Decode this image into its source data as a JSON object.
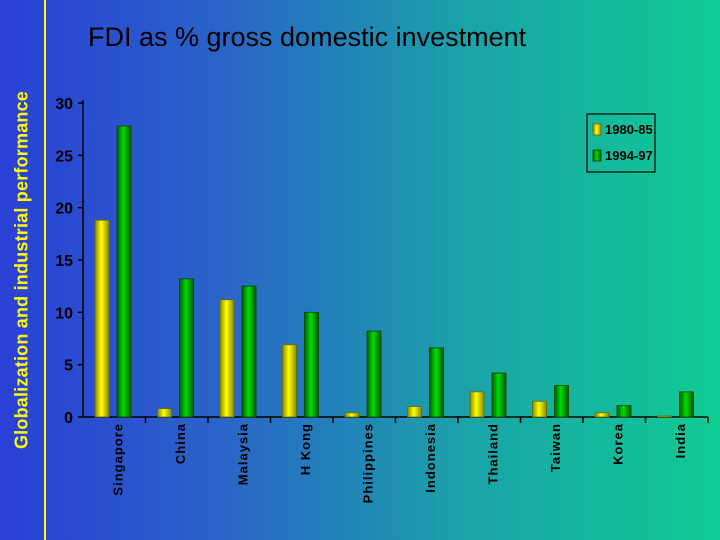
{
  "side_title": "Globalization and industrial performance",
  "slide_title": "FDI as % gross domestic investment",
  "colors": {
    "series_1980": "#ffff00",
    "series_1994": "#00cc00",
    "side_title_text": "#ffff00",
    "axis": "#000000"
  },
  "chart_data": {
    "type": "bar",
    "title": "",
    "xlabel": "",
    "ylabel": "",
    "ylim": [
      0,
      30
    ],
    "yticks": [
      0,
      5,
      10,
      15,
      20,
      25,
      30
    ],
    "grid": false,
    "legend": "top-right",
    "categories": [
      "Singapore",
      "China",
      "Malaysia",
      "H Kong",
      "Philippines",
      "Indonesia",
      "Thailand",
      "Taiwan",
      "Korea",
      "India"
    ],
    "series": [
      {
        "name": "1980-85",
        "color": "#ffff00",
        "values": [
          18.8,
          0.8,
          11.2,
          6.9,
          0.4,
          1.0,
          2.4,
          1.5,
          0.4,
          0.1
        ]
      },
      {
        "name": "1994-97",
        "color": "#00cc00",
        "values": [
          27.8,
          13.2,
          12.5,
          10.0,
          8.2,
          6.6,
          4.2,
          3.0,
          1.1,
          2.4
        ]
      }
    ]
  }
}
